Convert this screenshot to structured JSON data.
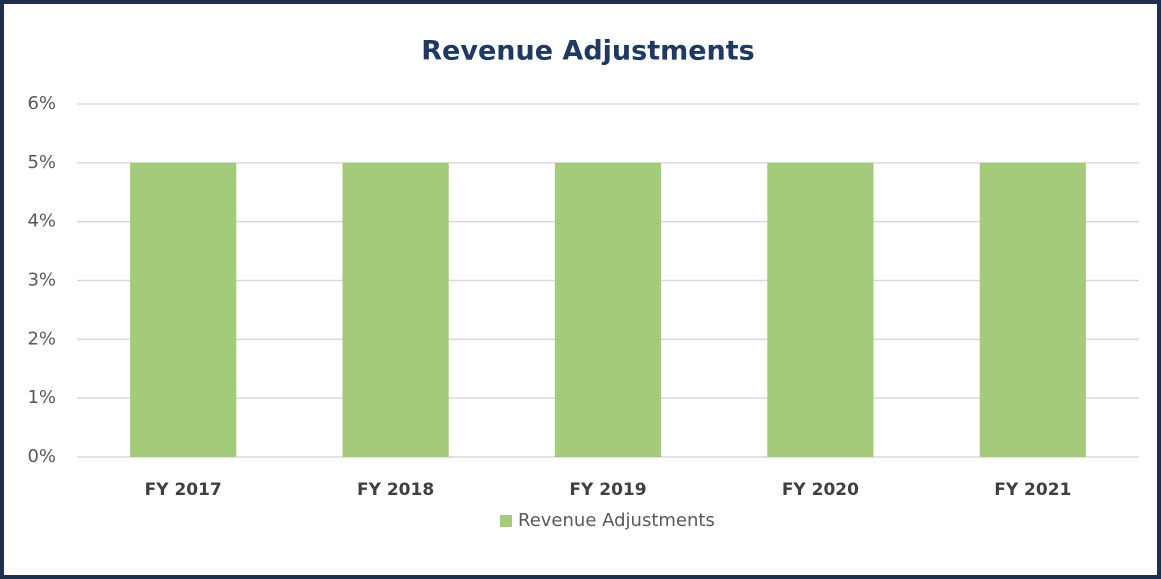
{
  "chart_data": {
    "type": "bar",
    "title": "Revenue Adjustments",
    "categories": [
      "FY 2017",
      "FY 2018",
      "FY 2019",
      "FY 2020",
      "FY 2021"
    ],
    "series": [
      {
        "name": "Revenue Adjustments",
        "color": "#a3cb7b",
        "values": [
          5,
          5,
          5,
          5,
          5
        ]
      }
    ],
    "ylim": [
      0,
      6
    ],
    "yticks": [
      {
        "value": 0,
        "label": "0%"
      },
      {
        "value": 1,
        "label": "1%"
      },
      {
        "value": 2,
        "label": "2%"
      },
      {
        "value": 3,
        "label": "3%"
      },
      {
        "value": 4,
        "label": "4%"
      },
      {
        "value": 5,
        "label": "5%"
      },
      {
        "value": 6,
        "label": "6%"
      }
    ],
    "grid": true,
    "legend": "bottom"
  }
}
